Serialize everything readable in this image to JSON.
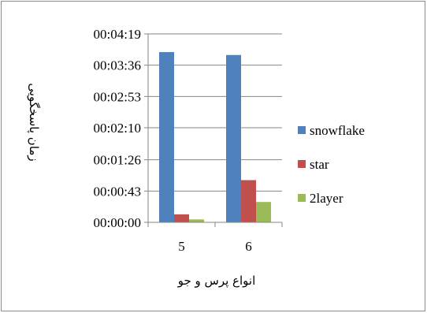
{
  "chart_data": {
    "type": "bar",
    "title": "",
    "xlabel": "انواع پرس و جو",
    "ylabel": "زمان پاسخگویی",
    "categories": [
      "5",
      "6"
    ],
    "y_tick_labels": [
      "00:00:00",
      "00:00:43",
      "00:01:26",
      "00:02:10",
      "00:02:53",
      "00:03:36",
      "00:04:19"
    ],
    "y_tick_seconds": [
      0,
      43,
      86,
      130,
      173,
      216,
      259
    ],
    "ylim_seconds": [
      0,
      259
    ],
    "grid": true,
    "legend_position": "right",
    "series": [
      {
        "name": "snowflake",
        "color": "#4F81BD",
        "values_seconds": [
          234,
          230
        ]
      },
      {
        "name": "star",
        "color": "#C0504D",
        "values_seconds": [
          11,
          58
        ]
      },
      {
        "name": "2layer",
        "color": "#9BBB59",
        "values_seconds": [
          4,
          28
        ]
      }
    ]
  }
}
